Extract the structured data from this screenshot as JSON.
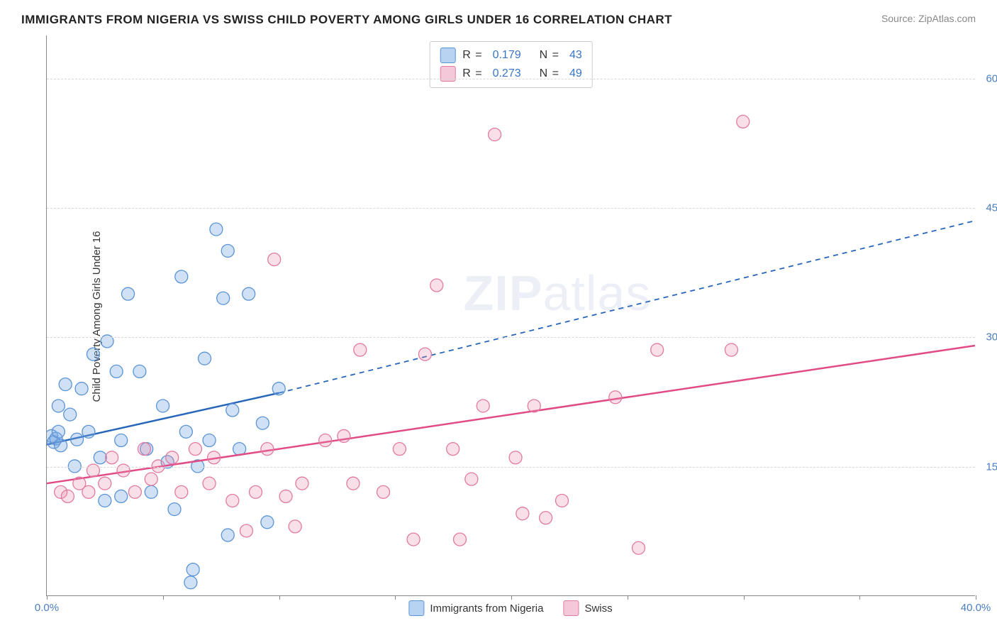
{
  "header": {
    "title": "IMMIGRANTS FROM NIGERIA VS SWISS CHILD POVERTY AMONG GIRLS UNDER 16 CORRELATION CHART",
    "source": "Source: ZipAtlas.com"
  },
  "chart": {
    "type": "scatter",
    "ylabel": "Child Poverty Among Girls Under 16",
    "xlim": [
      0,
      40
    ],
    "ylim": [
      0,
      65
    ],
    "background_color": "#ffffff",
    "grid_color": "#d8d8d8",
    "y_ticks": [
      {
        "value": 15,
        "label": "15.0%"
      },
      {
        "value": 30,
        "label": "30.0%"
      },
      {
        "value": 45,
        "label": "45.0%"
      },
      {
        "value": 60,
        "label": "60.0%"
      }
    ],
    "x_ticks": [
      {
        "value": 0,
        "label": "0.0%"
      },
      {
        "value": 5,
        "label": ""
      },
      {
        "value": 10,
        "label": ""
      },
      {
        "value": 15,
        "label": ""
      },
      {
        "value": 20,
        "label": ""
      },
      {
        "value": 25,
        "label": ""
      },
      {
        "value": 30,
        "label": ""
      },
      {
        "value": 35,
        "label": ""
      },
      {
        "value": 40,
        "label": "40.0%"
      }
    ],
    "watermark": {
      "prefix": "ZIP",
      "suffix": "atlas"
    },
    "marker_radius": 9,
    "marker_stroke_width": 1.3,
    "series": [
      {
        "name": "Immigrants from Nigeria",
        "fill_color": "rgba(120,170,230,0.35)",
        "stroke_color": "#5a94d6",
        "line_color": "#2765b8",
        "legend_fill": "#b7d3f1",
        "legend_border": "#5a94d6",
        "stats": {
          "R_label": "R =",
          "R_value": "0.179",
          "N_label": "N =",
          "N_value": "43"
        },
        "trend": {
          "solid_from_x": 0,
          "solid_to_x": 10,
          "dashed_to_x": 40,
          "y_at_0": 17.5,
          "y_at_10": 23.5,
          "y_at_40": 43.5
        },
        "points": [
          {
            "x": 0.2,
            "y": 18.5
          },
          {
            "x": 0.3,
            "y": 17.8
          },
          {
            "x": 0.4,
            "y": 18.2
          },
          {
            "x": 0.5,
            "y": 19
          },
          {
            "x": 0.6,
            "y": 17.4
          },
          {
            "x": 0.5,
            "y": 22
          },
          {
            "x": 0.8,
            "y": 24.5
          },
          {
            "x": 1.0,
            "y": 21
          },
          {
            "x": 1.2,
            "y": 15
          },
          {
            "x": 1.3,
            "y": 18.1
          },
          {
            "x": 1.5,
            "y": 24
          },
          {
            "x": 1.8,
            "y": 19
          },
          {
            "x": 2.0,
            "y": 28
          },
          {
            "x": 2.3,
            "y": 16
          },
          {
            "x": 2.5,
            "y": 11
          },
          {
            "x": 2.6,
            "y": 29.5
          },
          {
            "x": 3.0,
            "y": 26
          },
          {
            "x": 3.2,
            "y": 18
          },
          {
            "x": 3.2,
            "y": 11.5
          },
          {
            "x": 3.5,
            "y": 35
          },
          {
            "x": 4.0,
            "y": 26
          },
          {
            "x": 4.3,
            "y": 17
          },
          {
            "x": 4.5,
            "y": 12
          },
          {
            "x": 5.0,
            "y": 22
          },
          {
            "x": 5.2,
            "y": 15.5
          },
          {
            "x": 5.5,
            "y": 10
          },
          {
            "x": 5.8,
            "y": 37
          },
          {
            "x": 6.0,
            "y": 19
          },
          {
            "x": 6.2,
            "y": 1.5
          },
          {
            "x": 6.3,
            "y": 3
          },
          {
            "x": 6.5,
            "y": 15
          },
          {
            "x": 6.8,
            "y": 27.5
          },
          {
            "x": 7.0,
            "y": 18
          },
          {
            "x": 7.3,
            "y": 42.5
          },
          {
            "x": 7.6,
            "y": 34.5
          },
          {
            "x": 7.8,
            "y": 40
          },
          {
            "x": 7.8,
            "y": 7
          },
          {
            "x": 8.0,
            "y": 21.5
          },
          {
            "x": 8.3,
            "y": 17
          },
          {
            "x": 8.7,
            "y": 35
          },
          {
            "x": 9.3,
            "y": 20
          },
          {
            "x": 9.5,
            "y": 8.5
          },
          {
            "x": 10,
            "y": 24
          }
        ]
      },
      {
        "name": "Swiss",
        "fill_color": "rgba(235,140,170,0.28)",
        "stroke_color": "#e27aa2",
        "line_color": "#e14b86",
        "legend_fill": "#f5c8d9",
        "legend_border": "#e27aa2",
        "stats": {
          "R_label": "R =",
          "R_value": "0.273",
          "N_label": "N =",
          "N_value": "49"
        },
        "trend": {
          "solid_from_x": 0,
          "solid_to_x": 40,
          "dashed_to_x": 40,
          "y_at_0": 13,
          "y_at_40": 29
        },
        "points": [
          {
            "x": 0.6,
            "y": 12
          },
          {
            "x": 0.9,
            "y": 11.5
          },
          {
            "x": 1.4,
            "y": 13
          },
          {
            "x": 1.8,
            "y": 12
          },
          {
            "x": 2.0,
            "y": 14.5
          },
          {
            "x": 2.5,
            "y": 13
          },
          {
            "x": 2.8,
            "y": 16
          },
          {
            "x": 3.3,
            "y": 14.5
          },
          {
            "x": 3.8,
            "y": 12
          },
          {
            "x": 4.2,
            "y": 17
          },
          {
            "x": 4.5,
            "y": 13.5
          },
          {
            "x": 4.8,
            "y": 15
          },
          {
            "x": 5.4,
            "y": 16
          },
          {
            "x": 5.8,
            "y": 12
          },
          {
            "x": 6.4,
            "y": 17
          },
          {
            "x": 7.0,
            "y": 13
          },
          {
            "x": 7.2,
            "y": 16
          },
          {
            "x": 8.0,
            "y": 11
          },
          {
            "x": 8.6,
            "y": 7.5
          },
          {
            "x": 9.0,
            "y": 12
          },
          {
            "x": 9.5,
            "y": 17
          },
          {
            "x": 9.8,
            "y": 39
          },
          {
            "x": 10.3,
            "y": 11.5
          },
          {
            "x": 10.7,
            "y": 8
          },
          {
            "x": 11.0,
            "y": 13
          },
          {
            "x": 12.0,
            "y": 18
          },
          {
            "x": 12.8,
            "y": 18.5
          },
          {
            "x": 13.2,
            "y": 13
          },
          {
            "x": 13.5,
            "y": 28.5
          },
          {
            "x": 14.5,
            "y": 12
          },
          {
            "x": 15.2,
            "y": 17
          },
          {
            "x": 15.8,
            "y": 6.5
          },
          {
            "x": 16.3,
            "y": 28
          },
          {
            "x": 16.8,
            "y": 36
          },
          {
            "x": 17.5,
            "y": 17
          },
          {
            "x": 17.8,
            "y": 6.5
          },
          {
            "x": 18.3,
            "y": 13.5
          },
          {
            "x": 18.8,
            "y": 22
          },
          {
            "x": 19.3,
            "y": 53.5
          },
          {
            "x": 20.2,
            "y": 16
          },
          {
            "x": 20.5,
            "y": 9.5
          },
          {
            "x": 21.0,
            "y": 22
          },
          {
            "x": 21.5,
            "y": 9
          },
          {
            "x": 22.2,
            "y": 11
          },
          {
            "x": 24.5,
            "y": 23
          },
          {
            "x": 25.5,
            "y": 5.5
          },
          {
            "x": 26.3,
            "y": 28.5
          },
          {
            "x": 29.5,
            "y": 28.5
          },
          {
            "x": 30.0,
            "y": 55
          }
        ]
      }
    ]
  }
}
